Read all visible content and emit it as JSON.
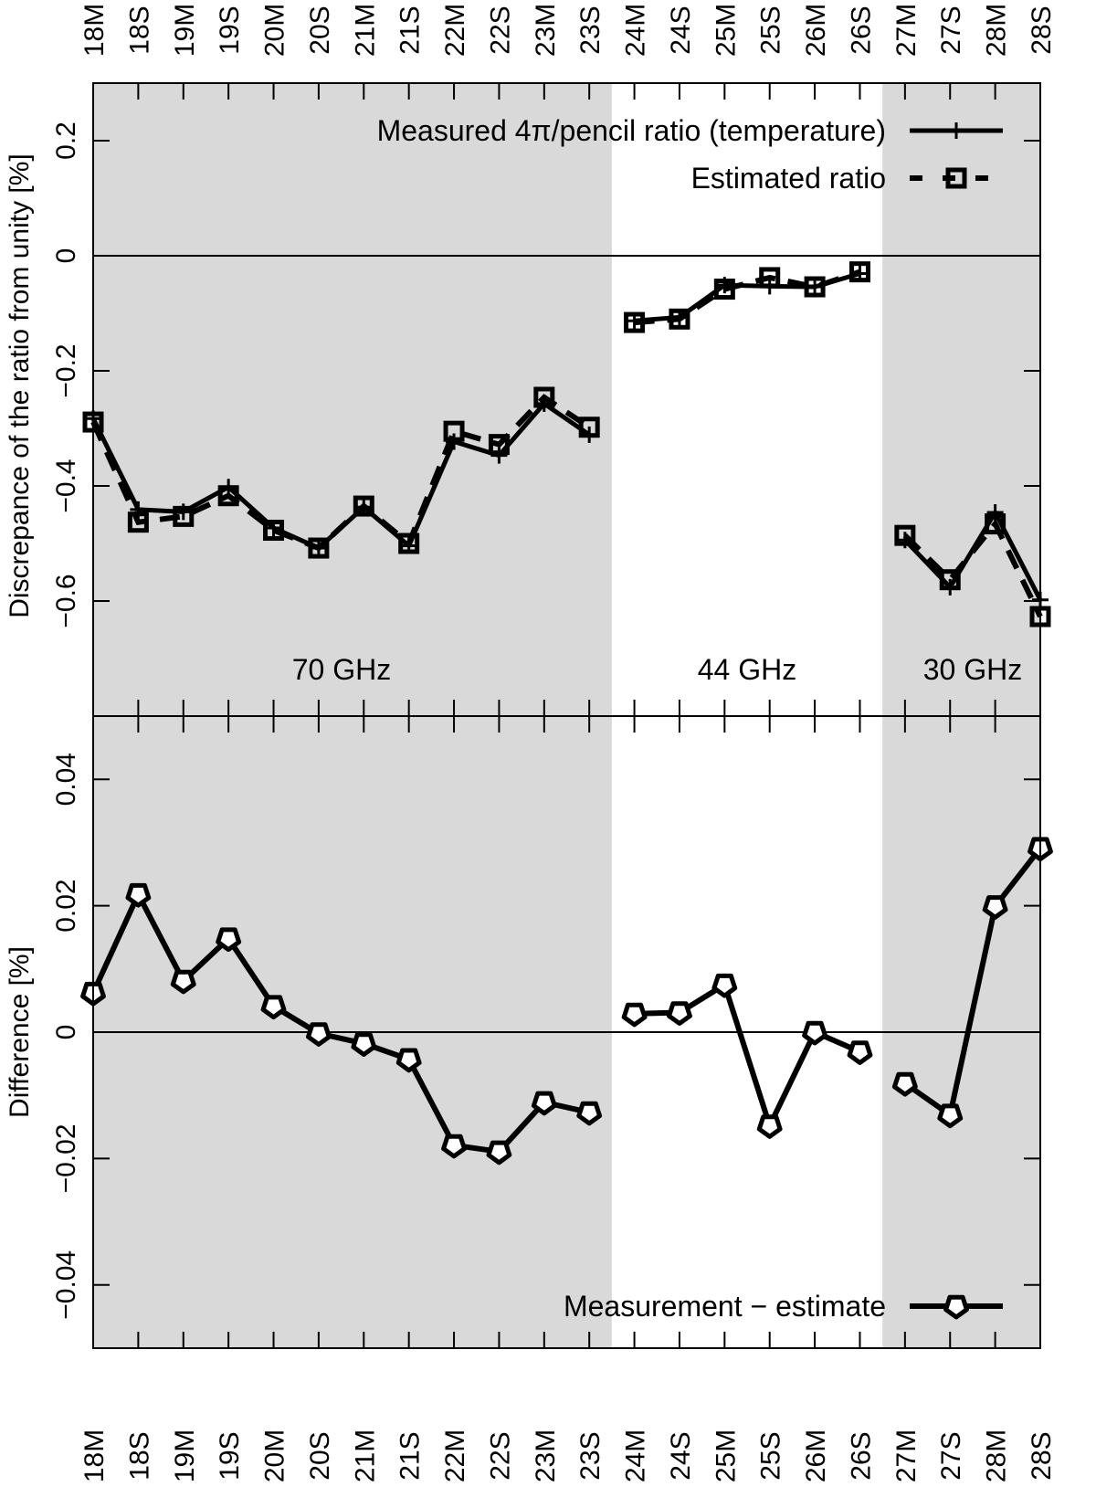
{
  "chart_data": [
    {
      "type": "line",
      "ylabel": "Discrepance of the ratio from unity [%]",
      "ylim": [
        -0.8,
        0.3
      ],
      "yticks": [
        -0.6,
        -0.4,
        -0.2,
        0,
        0.2
      ],
      "ytick_labels": [
        "−0.6",
        "−0.4",
        "−0.2",
        "0",
        "0.2"
      ],
      "categories": [
        "18M",
        "18S",
        "19M",
        "19S",
        "20M",
        "20S",
        "21M",
        "21S",
        "22M",
        "22S",
        "23M",
        "23S",
        "24M",
        "24S",
        "25M",
        "25S",
        "26M",
        "26S",
        "27M",
        "27S",
        "28M",
        "28S"
      ],
      "groups": [
        {
          "label": "70 GHz",
          "from": "18M",
          "to": "23S",
          "shaded": true
        },
        {
          "label": "44 GHz",
          "from": "24M",
          "to": "26S",
          "shaded": false
        },
        {
          "label": "30 GHz",
          "from": "27M",
          "to": "28S",
          "shaded": true
        }
      ],
      "series": [
        {
          "name": "Measured 4π/pencil ratio (temperature)",
          "style": "solid",
          "marker": "plus",
          "values": [
            -0.283,
            -0.441,
            -0.445,
            -0.402,
            -0.473,
            -0.508,
            -0.437,
            -0.504,
            -0.323,
            -0.347,
            -0.257,
            -0.311,
            -0.113,
            -0.107,
            -0.051,
            -0.053,
            -0.054,
            -0.031,
            -0.494,
            -0.576,
            -0.446,
            -0.598
          ]
        },
        {
          "name": "Estimated ratio",
          "style": "dashed",
          "marker": "square",
          "values": [
            -0.289,
            -0.463,
            -0.453,
            -0.417,
            -0.477,
            -0.508,
            -0.435,
            -0.5,
            -0.305,
            -0.328,
            -0.246,
            -0.298,
            -0.116,
            -0.11,
            -0.058,
            -0.038,
            -0.054,
            -0.028,
            -0.486,
            -0.563,
            -0.466,
            -0.627
          ]
        }
      ],
      "legend": "top-right",
      "zero_line": true,
      "grid": false
    },
    {
      "type": "line",
      "ylabel": "Difference [%]",
      "ylim": [
        -0.05,
        0.05
      ],
      "yticks": [
        -0.04,
        -0.02,
        0,
        0.02,
        0.04
      ],
      "ytick_labels": [
        "−0.04",
        "−0.02",
        "0",
        "0.02",
        "0.04"
      ],
      "categories": [
        "18M",
        "18S",
        "19M",
        "19S",
        "20M",
        "20S",
        "21M",
        "21S",
        "22M",
        "22S",
        "23M",
        "23S",
        "24M",
        "24S",
        "25M",
        "25S",
        "26M",
        "26S",
        "27M",
        "27S",
        "28M",
        "28S"
      ],
      "series": [
        {
          "name": "Measurement − estimate",
          "style": "solid",
          "marker": "pentagon",
          "values": [
            0.0062,
            0.0218,
            0.0081,
            0.0148,
            0.0041,
            -0.0002,
            -0.0018,
            -0.0043,
            -0.0179,
            -0.0189,
            -0.0111,
            -0.0127,
            0.0029,
            0.0031,
            0.0075,
            -0.0148,
            0.0,
            -0.0031,
            -0.0081,
            -0.0131,
            0.0199,
            0.0291
          ],
          "breaks_after": [
            "23S",
            "26S"
          ]
        }
      ],
      "legend": "bottom-right",
      "zero_line": true,
      "grid": false
    }
  ],
  "colors": {
    "shading": "#d9d9d9",
    "line": "#000000",
    "background": "#ffffff"
  }
}
